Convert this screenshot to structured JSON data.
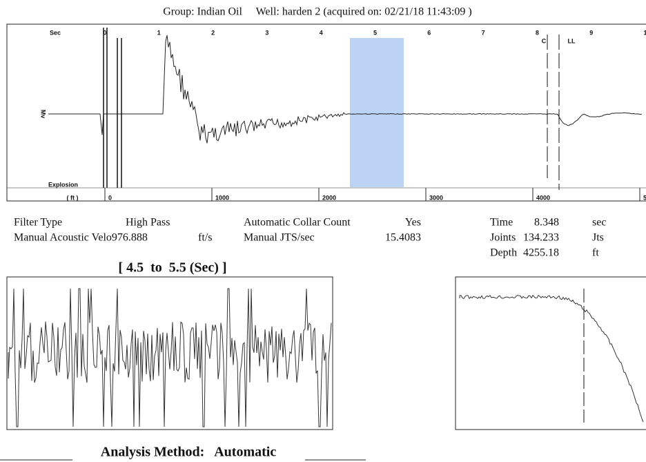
{
  "header": {
    "title": "Group: Indian Oil     Well: harden 2 (acquired on: 02/21/18 11:43:09 )"
  },
  "plot": {
    "y_label": "Mv",
    "time_label": "Sec",
    "time_ticks": [
      "0",
      "1",
      "2",
      "3",
      "4",
      "5",
      "6",
      "7",
      "8",
      "9",
      "1"
    ],
    "depth_label": "( ft )",
    "depth_ticks": [
      "0",
      "1000",
      "2000",
      "3000",
      "4000",
      "5"
    ],
    "explosion_label": "Explosion",
    "markers": [
      "C",
      "LL"
    ]
  },
  "parameters": {
    "rows": [
      [
        "Filter Type",
        "High Pass",
        "Automatic Collar Count",
        "Yes"
      ],
      [
        "Manual Acoustic Velo976.888",
        "ft/s",
        "Manual JTS/sec",
        "15.4083"
      ]
    ],
    "results": [
      [
        "Time",
        "8.348",
        "sec"
      ],
      [
        "Joints",
        "134.233",
        "Jts"
      ],
      [
        "Depth",
        "4255.18",
        "ft"
      ]
    ]
  },
  "detail_title": "[ 4.5  to  5.5 (Sec) ]",
  "footer": "Analysis Method:   Automatic"
}
